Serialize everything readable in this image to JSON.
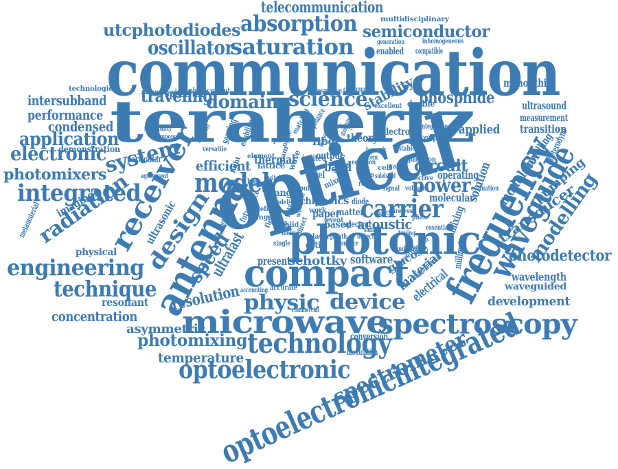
{
  "color": "#3d7bb3",
  "words": [
    "communication",
    "terahertz",
    "optical",
    "frequency",
    "photonic",
    "compact",
    "microwave",
    "spectroscopy",
    "antenna",
    "receiver",
    "optoelectronicintegrated",
    "optoelectronic",
    "waveguide",
    "technology",
    "engineering",
    "spectrometer",
    "design",
    "carrier",
    "model",
    "absorption",
    "saturation",
    "oscillator",
    "utcphotodiodes",
    "semiconductor",
    "telecommunication",
    "integrated",
    "electronic",
    "application",
    "photomixers",
    "radiation",
    "technique",
    "system",
    "physic",
    "device",
    "power",
    "modelling",
    "photodetector",
    "speed",
    "science",
    "domain",
    "traveling",
    "phosphide",
    "circuit",
    "acoustic",
    "schottky",
    "software",
    "material",
    "electrical",
    "ultrafast",
    "resolution",
    "photomixing",
    "temperature",
    "concentration",
    "asymmetric",
    "resonant",
    "physical",
    "imaging",
    "ultrasonic",
    "metamaterial",
    "intersubband",
    "performance",
    "condensed",
    "technologies",
    "efficient",
    "thermal",
    "band",
    "sensing",
    "stability",
    "monolithic",
    "ultrasound",
    "measurement",
    "transition",
    "applied",
    "travelling",
    "heterodyne",
    "modulator",
    "pumping",
    "transducer",
    "millimetre",
    "wavelength",
    "waveguided",
    "development",
    "solution",
    "operating",
    "molecular",
    "mixing",
    "glucose",
    "conversion",
    "modulation",
    "commercial",
    "accurate",
    "accounting",
    "present",
    "based",
    "spectral",
    "paper",
    "matter",
    "oeics",
    "chip",
    "range",
    "lattice",
    "element",
    "fiber",
    "matched",
    "impedance",
    "theory",
    "electro",
    "integration",
    "coupled",
    "double",
    "junction",
    "continuous",
    "response",
    "spectrum",
    "photocurrent",
    "transmission",
    "excellent",
    "multidisciplinary",
    "generation",
    "inhomogeneous",
    "enabled",
    "compatible",
    "demonstration",
    "component",
    "scalability",
    "particular",
    "agreement",
    "enabling",
    "transport",
    "level",
    "output",
    "invited",
    "mixer",
    "driven",
    "wave",
    "beam",
    "defined",
    "ingaas",
    "future",
    "source",
    "network",
    "work",
    "diode",
    "effective",
    "evaluation",
    "essential",
    "bandwidth",
    "contribution",
    "experimental",
    "voltage",
    "equation",
    "wireless",
    "study",
    "structure",
    "versatile",
    "growth",
    "event",
    "object",
    "filter",
    "model",
    "wafer",
    "laser",
    "optic",
    "solid",
    "merge",
    "direct",
    "single",
    "sample",
    "surface",
    "coherent",
    "result",
    "cell",
    "transfer",
    "signal",
    "quality",
    "sensor",
    "harmonic",
    "stable",
    "gain",
    "sideband",
    "loss",
    "noise",
    "photo",
    "switch",
    "pulse",
    "field",
    "energy",
    "system",
    "tuning",
    "phase",
    "light",
    "high"
  ]
}
